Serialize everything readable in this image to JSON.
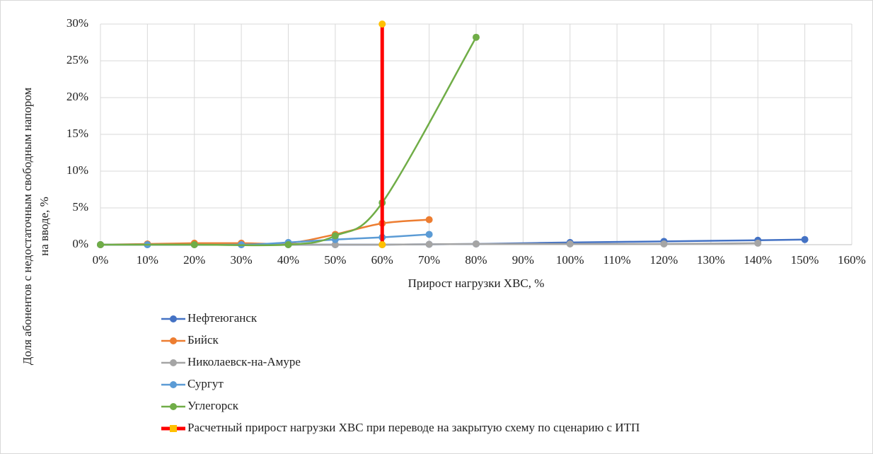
{
  "chart_data": {
    "type": "line",
    "y_label": [
      "Доля абонентов с недостаточным свободным напором",
      "на вводе, %"
    ],
    "x_label": "Прирост нагрузки ХВС, %",
    "xlim": [
      0,
      160
    ],
    "xticks": [
      {
        "value": 0,
        "label": "0%"
      },
      {
        "value": 10,
        "label": "10%"
      },
      {
        "value": 20,
        "label": "20%"
      },
      {
        "value": 30,
        "label": "30%"
      },
      {
        "value": 40,
        "label": "40%"
      },
      {
        "value": 50,
        "label": "50%"
      },
      {
        "value": 60,
        "label": "60%"
      },
      {
        "value": 70,
        "label": "70%"
      },
      {
        "value": 80,
        "label": "80%"
      },
      {
        "value": 90,
        "label": "90%"
      },
      {
        "value": 100,
        "label": "100%"
      },
      {
        "value": 110,
        "label": "110%"
      },
      {
        "value": 120,
        "label": "120%"
      },
      {
        "value": 130,
        "label": "130%"
      },
      {
        "value": 140,
        "label": "140%"
      },
      {
        "value": 150,
        "label": "150%"
      },
      {
        "value": 160,
        "label": "160%"
      }
    ],
    "ylim": [
      0,
      30
    ],
    "yticks": [
      {
        "value": 0,
        "label": "0%"
      },
      {
        "value": 5,
        "label": "5%"
      },
      {
        "value": 10,
        "label": "10%"
      },
      {
        "value": 15,
        "label": "15%"
      },
      {
        "value": 20,
        "label": "20%"
      },
      {
        "value": 25,
        "label": "25%"
      },
      {
        "value": 30,
        "label": "30%"
      }
    ],
    "grid": true,
    "smooth": true,
    "legend": "bottom",
    "series": [
      {
        "name": "Нефтеюганск",
        "color": "#4472c4",
        "x": [
          0,
          10,
          20,
          30,
          40,
          50,
          60,
          70,
          80,
          100,
          120,
          140,
          150
        ],
        "values": [
          0,
          0,
          0,
          0,
          0,
          0,
          0,
          0.05,
          0.1,
          0.3,
          0.45,
          0.6,
          0.7
        ]
      },
      {
        "name": "Бийск",
        "color": "#ed7d31",
        "x": [
          0,
          10,
          20,
          30,
          40,
          50,
          60,
          70
        ],
        "values": [
          0,
          0.1,
          0.2,
          0.2,
          0.2,
          1.4,
          2.9,
          3.4
        ]
      },
      {
        "name": "Николаевск-на-Амуре",
        "color": "#a5a5a5",
        "x": [
          0,
          50,
          60,
          70,
          80,
          100,
          120,
          140
        ],
        "values": [
          0,
          0,
          0,
          0.05,
          0.1,
          0.1,
          0.1,
          0.2
        ]
      },
      {
        "name": "Сургут",
        "color": "#5b9bd5",
        "x": [
          0,
          10,
          30,
          40,
          50,
          60,
          70
        ],
        "values": [
          0,
          0,
          0,
          0.3,
          0.7,
          1.0,
          1.4
        ]
      },
      {
        "name": "Углегорск",
        "color": "#70ad47",
        "x": [
          0,
          20,
          40,
          50,
          60,
          80
        ],
        "values": [
          0,
          0,
          0,
          1.2,
          5.7,
          28.2
        ]
      },
      {
        "name": "Расчетный прирост нагрузки ХВС при переводе на закрытую схему по сценарию с ИТП",
        "color": "#ff0000",
        "marker_color": "#ffc000",
        "width": 5,
        "x": [
          60,
          60
        ],
        "values": [
          0,
          30
        ]
      }
    ]
  }
}
